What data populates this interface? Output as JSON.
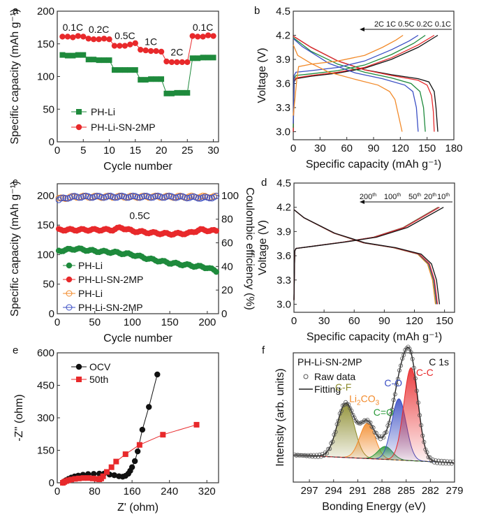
{
  "chart_data": [
    {
      "id": "a",
      "type": "scatter",
      "panel_label": "a",
      "xlabel": "Cycle number",
      "ylabel": "Specific capacity (mAh g⁻¹)",
      "xlim": [
        0,
        31
      ],
      "ylim": [
        0,
        200
      ],
      "xticks": [
        0,
        5,
        10,
        15,
        20,
        25,
        30
      ],
      "yticks": [
        0,
        50,
        100,
        150,
        200
      ],
      "legend_position": "bottom-left",
      "series": [
        {
          "name": "PH-Li",
          "color": "#1e8a3c",
          "marker": "square",
          "x": [
            1,
            2,
            3,
            4,
            5,
            6,
            7,
            8,
            9,
            10,
            11,
            12,
            13,
            14,
            15,
            16,
            17,
            18,
            19,
            20,
            21,
            22,
            23,
            24,
            25,
            26,
            27,
            28,
            29,
            30
          ],
          "y": [
            133,
            132,
            132,
            133,
            133,
            126,
            126,
            125,
            125,
            125,
            110,
            110,
            110,
            110,
            110,
            95,
            95,
            96,
            96,
            96,
            74,
            74,
            75,
            75,
            75,
            128,
            128,
            129,
            129,
            129
          ]
        },
        {
          "name": "PH-Li-SN-2MP",
          "color": "#e8292b",
          "marker": "circle",
          "x": [
            1,
            2,
            3,
            4,
            5,
            6,
            7,
            8,
            9,
            10,
            11,
            12,
            13,
            14,
            15,
            16,
            17,
            18,
            19,
            20,
            21,
            22,
            23,
            24,
            25,
            26,
            27,
            28,
            29,
            30
          ],
          "y": [
            161,
            161,
            160,
            162,
            161,
            158,
            157,
            157,
            158,
            157,
            147,
            147,
            147,
            149,
            151,
            141,
            140,
            139,
            139,
            138,
            123,
            122,
            122,
            122,
            122,
            162,
            161,
            161,
            163,
            162
          ]
        }
      ],
      "annotations": [
        {
          "text": "0.1C",
          "x": 3,
          "y": 170
        },
        {
          "text": "0.2C",
          "x": 8,
          "y": 167
        },
        {
          "text": "0.5C",
          "x": 13,
          "y": 157
        },
        {
          "text": "1C",
          "x": 18,
          "y": 148
        },
        {
          "text": "2C",
          "x": 23,
          "y": 132
        },
        {
          "text": "0.1C",
          "x": 28,
          "y": 170
        }
      ]
    },
    {
      "id": "b",
      "type": "line",
      "panel_label": "b",
      "xlabel": "Specific capacity (mAh g⁻¹)",
      "ylabel": "Voltage (V)",
      "xlim": [
        0,
        180
      ],
      "ylim": [
        2.9,
        4.5
      ],
      "xticks": [
        0,
        30,
        60,
        90,
        120,
        150,
        180
      ],
      "yticks": [
        3.0,
        3.3,
        3.6,
        3.9,
        4.2,
        4.5
      ],
      "arrow_label": "2C 1C 0.5C 0.2C 0.1C",
      "series": [
        {
          "name": "0.1C",
          "color": "#111111",
          "charge": [
            [
              0,
              3.0
            ],
            [
              1,
              3.62
            ],
            [
              3,
              3.66
            ],
            [
              20,
              3.69
            ],
            [
              50,
              3.73
            ],
            [
              80,
              3.79
            ],
            [
              110,
              3.9
            ],
            [
              140,
              4.05
            ],
            [
              162,
              4.2
            ]
          ],
          "discharge": [
            [
              0,
              4.19
            ],
            [
              20,
              4.05
            ],
            [
              50,
              3.88
            ],
            [
              80,
              3.77
            ],
            [
              110,
              3.71
            ],
            [
              140,
              3.66
            ],
            [
              152,
              3.62
            ],
            [
              158,
              3.5
            ],
            [
              160,
              3.3
            ],
            [
              162,
              3.0
            ]
          ]
        },
        {
          "name": "0.2C",
          "color": "#e8292b",
          "charge": [
            [
              0,
              3.0
            ],
            [
              1,
              3.63
            ],
            [
              3,
              3.67
            ],
            [
              20,
              3.7
            ],
            [
              50,
              3.74
            ],
            [
              80,
              3.8
            ],
            [
              110,
              3.92
            ],
            [
              140,
              4.08
            ],
            [
              158,
              4.2
            ]
          ],
          "discharge": [
            [
              0,
              4.19
            ],
            [
              20,
              4.05
            ],
            [
              50,
              3.88
            ],
            [
              80,
              3.77
            ],
            [
              110,
              3.7
            ],
            [
              140,
              3.64
            ],
            [
              150,
              3.58
            ],
            [
              155,
              3.45
            ],
            [
              157,
              3.25
            ],
            [
              158,
              3.0
            ]
          ]
        },
        {
          "name": "0.5C",
          "color": "#1e8a3c",
          "charge": [
            [
              0,
              3.05
            ],
            [
              1,
              3.66
            ],
            [
              3,
              3.7
            ],
            [
              20,
              3.72
            ],
            [
              50,
              3.76
            ],
            [
              80,
              3.83
            ],
            [
              110,
              3.96
            ],
            [
              135,
              4.1
            ],
            [
              148,
              4.2
            ]
          ],
          "discharge": [
            [
              0,
              4.17
            ],
            [
              20,
              4.0
            ],
            [
              50,
              3.84
            ],
            [
              80,
              3.74
            ],
            [
              110,
              3.67
            ],
            [
              132,
              3.6
            ],
            [
              142,
              3.5
            ],
            [
              146,
              3.3
            ],
            [
              148,
              3.0
            ]
          ]
        },
        {
          "name": "1C",
          "color": "#3b4fc4",
          "charge": [
            [
              0,
              3.1
            ],
            [
              1,
              3.7
            ],
            [
              3,
              3.74
            ],
            [
              20,
              3.76
            ],
            [
              50,
              3.8
            ],
            [
              80,
              3.88
            ],
            [
              110,
              4.02
            ],
            [
              130,
              4.13
            ],
            [
              140,
              4.2
            ]
          ],
          "discharge": [
            [
              0,
              4.16
            ],
            [
              10,
              4.06
            ],
            [
              40,
              3.85
            ],
            [
              70,
              3.73
            ],
            [
              100,
              3.66
            ],
            [
              125,
              3.58
            ],
            [
              134,
              3.5
            ],
            [
              138,
              3.3
            ],
            [
              140,
              3.0
            ]
          ]
        },
        {
          "name": "2C",
          "color": "#f28a2a",
          "charge": [
            [
              0,
              3.2
            ],
            [
              4,
              3.65
            ],
            [
              6,
              3.81
            ],
            [
              20,
              3.84
            ],
            [
              50,
              3.88
            ],
            [
              80,
              3.95
            ],
            [
              100,
              4.05
            ],
            [
              115,
              4.14
            ],
            [
              123,
              4.2
            ]
          ],
          "discharge": [
            [
              0,
              4.08
            ],
            [
              5,
              3.95
            ],
            [
              20,
              3.85
            ],
            [
              40,
              3.74
            ],
            [
              70,
              3.65
            ],
            [
              95,
              3.58
            ],
            [
              108,
              3.5
            ],
            [
              114,
              3.4
            ],
            [
              118,
              3.2
            ],
            [
              122,
              3.0
            ]
          ]
        }
      ]
    },
    {
      "id": "c",
      "type": "scatter",
      "panel_label": "c",
      "xlabel": "Cycle number",
      "ylabel": "Specific capacity (mAh g⁻¹)",
      "ylabel_right": "Coulombic efficiency (%)",
      "xlim": [
        0,
        215
      ],
      "ylim": [
        0,
        220
      ],
      "ylim_right": [
        0,
        110
      ],
      "xticks": [
        0,
        50,
        100,
        150,
        200
      ],
      "yticks": [
        0,
        50,
        100,
        150,
        200
      ],
      "yticks_right": [
        0,
        20,
        40,
        60,
        80,
        100
      ],
      "annotation": "0.5C",
      "legend_position": "bottom-left",
      "series": [
        {
          "name": "PH-Li",
          "axis": "left",
          "color": "#1e8a3c",
          "marker": "filled-circle",
          "x": [
            0,
            25,
            50,
            75,
            100,
            125,
            150,
            175,
            200,
            212
          ],
          "y": [
            106,
            110,
            106,
            104,
            100,
            92,
            86,
            82,
            78,
            72
          ]
        },
        {
          "name": "PH-LI-SN-2MP",
          "axis": "left",
          "color": "#e8292b",
          "marker": "filled-circle",
          "x": [
            0,
            25,
            50,
            75,
            85,
            100,
            125,
            150,
            175,
            190,
            212
          ],
          "y": [
            142,
            142,
            142,
            142,
            146,
            140,
            137,
            135,
            136,
            142,
            140
          ]
        },
        {
          "name": "PH-Li",
          "axis": "right",
          "color": "#f28a2a",
          "marker": "open-circle",
          "x": [
            0,
            10,
            25,
            50,
            100,
            150,
            200,
            212
          ],
          "y": [
            97,
            98,
            99,
            99,
            99,
            99,
            99,
            99
          ]
        },
        {
          "name": "PH-Li-SN-2MP",
          "axis": "right",
          "color": "#3b4fc4",
          "marker": "open-circle",
          "x": [
            0,
            10,
            25,
            50,
            100,
            150,
            200,
            212
          ],
          "y": [
            96,
            98,
            99,
            99,
            99,
            99,
            98,
            99
          ]
        }
      ]
    },
    {
      "id": "d",
      "type": "line",
      "panel_label": "d",
      "xlabel": "Specific capacity (mAh g⁻¹)",
      "ylabel": "Voltage (V)",
      "xlim": [
        0,
        160
      ],
      "ylim": [
        2.9,
        4.5
      ],
      "xticks": [
        0,
        30,
        60,
        90,
        120,
        150
      ],
      "yticks": [
        3.0,
        3.3,
        3.6,
        3.9,
        4.2,
        4.5
      ],
      "arrow_labels": [
        "200th",
        "100th",
        "50th",
        "20th",
        "10th"
      ],
      "series": [
        {
          "name": "10th",
          "color": "#111111",
          "cap": 145,
          "chg": 149
        },
        {
          "name": "20th",
          "color": "#e8292b",
          "cap": 143,
          "chg": 145
        },
        {
          "name": "50th",
          "color": "#3b4fc4",
          "cap": 142.5,
          "chg": 144.5
        },
        {
          "name": "100th",
          "color": "#1e8a3c",
          "cap": 142,
          "chg": 144
        },
        {
          "name": "200th",
          "color": "#f28a2a",
          "cap": 141,
          "chg": 143.5
        }
      ]
    },
    {
      "id": "e",
      "type": "scatter",
      "panel_label": "e",
      "xlabel": "Z' (ohm)",
      "ylabel": "-Z'' (ohm)",
      "xlim": [
        0,
        345
      ],
      "ylim": [
        0,
        600
      ],
      "xticks": [
        0,
        80,
        160,
        240,
        320
      ],
      "yticks": [
        0,
        150,
        300,
        450,
        600
      ],
      "legend_position": "top-left",
      "series": [
        {
          "name": "OCV",
          "color": "#111111",
          "marker": "circle",
          "x": [
            12,
            15,
            19,
            24,
            30,
            37,
            45,
            55,
            66,
            78,
            90,
            100,
            112,
            122,
            132,
            140,
            146,
            152,
            156,
            160,
            166,
            172,
            182,
            196,
            214
          ],
          "y": [
            0,
            6,
            12,
            18,
            24,
            29,
            33,
            37,
            40,
            41,
            42,
            42,
            38,
            35,
            30,
            28,
            32,
            42,
            55,
            72,
            100,
            145,
            245,
            350,
            500
          ]
        },
        {
          "name": "50th",
          "color": "#e8292b",
          "marker": "square",
          "x": [
            12,
            15,
            19,
            24,
            30,
            38,
            46,
            56,
            66,
            76,
            84,
            90,
            94,
            98,
            106,
            116,
            126,
            146,
            176,
            226,
            298
          ],
          "y": [
            0,
            4,
            8,
            12,
            15,
            18,
            20,
            22,
            22,
            20,
            18,
            16,
            20,
            30,
            50,
            72,
            98,
            132,
            175,
            222,
            268
          ]
        }
      ]
    },
    {
      "id": "f",
      "type": "line",
      "panel_label": "f",
      "title_left": "PH-Li-SN-2MP",
      "title_right": "C 1s",
      "xlabel": "Bonding Energy (eV)",
      "ylabel": "Intensity (arb. units)",
      "xlim": [
        299,
        279
      ],
      "xticks": [
        297,
        294,
        291,
        288,
        285,
        282,
        279
      ],
      "legend": [
        "Raw data",
        "Fitting"
      ],
      "peaks": [
        {
          "label": "C-F",
          "center": 292.5,
          "height": 0.58,
          "width": 1.05,
          "color": "#8a8a2a"
        },
        {
          "label": "Li2CO3",
          "center": 289.8,
          "height": 0.38,
          "width": 0.95,
          "color": "#f28a2a"
        },
        {
          "label": "C=O",
          "center": 287.6,
          "height": 0.14,
          "width": 0.9,
          "color": "#2a9a3a"
        },
        {
          "label": "C-O",
          "center": 285.9,
          "height": 0.66,
          "width": 0.9,
          "color": "#3b4fc4"
        },
        {
          "label": "C-C",
          "center": 284.4,
          "height": 1.0,
          "width": 0.9,
          "color": "#e8292b"
        }
      ]
    }
  ]
}
